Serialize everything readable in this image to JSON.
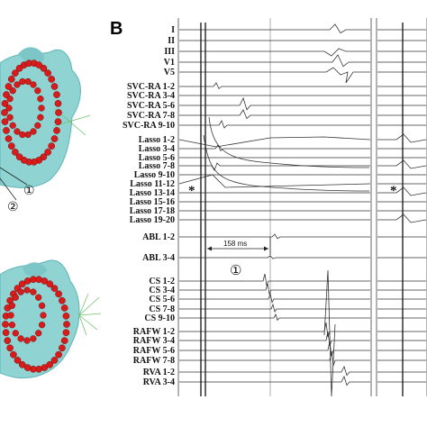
{
  "panel_b": {
    "letter": "B",
    "asterisk": "*",
    "interval_label": "158 ms",
    "marker_1": "①",
    "marker_2": "②",
    "channels": [
      "I",
      "II",
      "III",
      "V1",
      "V5",
      "SVC-RA 1-2",
      "SVC-RA 3-4",
      "SVC-RA 5-6",
      "SVC-RA 7-8",
      "SVC-RA 9-10",
      "Lasso 1-2",
      "Lasso 3-4",
      "Lasso 5-6",
      "Lasso 7-8",
      "Lasso 9-10",
      "Lasso 11-12",
      "Lasso 13-14",
      "Lasso 15-16",
      "Lasso 17-18",
      "Lasso 19-20",
      "ABL 1-2",
      "ABL 3-4",
      "CS 1-2",
      "CS 3-4",
      "CS 5-6",
      "CS 7-8",
      "CS 9-10",
      "RAFW 1-2",
      "RAFW 3-4",
      "RAFW 5-6",
      "RAFW 7-8",
      "RVA 1-2",
      "RVA 3-4"
    ]
  },
  "colors": {
    "mesh": "#8fd3d3",
    "mesh_dark": "#5fb5b8",
    "ablation_point": "#d81c1c",
    "trace": "#333333"
  }
}
